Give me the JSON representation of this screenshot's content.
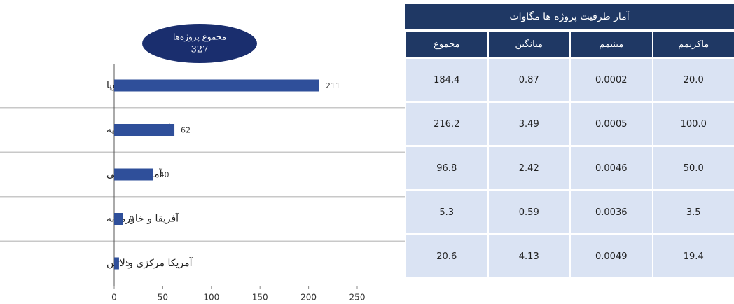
{
  "chart_data": {
    "type": "bar",
    "orientation": "horizontal",
    "categories": [
      "اروپا",
      "آسیا و اقیانوسیه",
      "آمریکا شمالی",
      "آفریقا و خاورمیانه",
      "آمریکا مرکزی و لاتین"
    ],
    "values": [
      211,
      62,
      40,
      9,
      5
    ],
    "color": "#2f4f9a",
    "xlim": [
      0,
      250
    ],
    "xticks": [
      0,
      50,
      100,
      150,
      200,
      250
    ],
    "total_label": "مجموع پروژه‌ها",
    "total": 327
  },
  "table": {
    "title": "آمار ظرفیت پروژه ها   مگاوات",
    "columns": [
      "ماکزیمم",
      "مینیمم",
      "میانگین",
      "مجموع"
    ],
    "rows": [
      [
        "20.0",
        "0.0002",
        "0.87",
        "184.4"
      ],
      [
        "100.0",
        "0.0005",
        "3.49",
        "216.2"
      ],
      [
        "50.0",
        "0.0046",
        "2.42",
        "96.8"
      ],
      [
        "3.5",
        "0.0036",
        "0.59",
        "5.3"
      ],
      [
        "19.4",
        "0.0049",
        "4.13",
        "20.6"
      ]
    ]
  }
}
